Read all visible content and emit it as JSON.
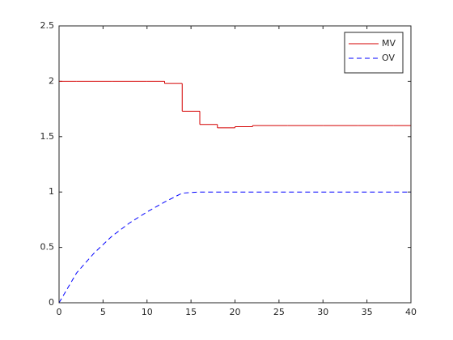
{
  "chart_data": {
    "type": "line",
    "x": [
      0,
      2,
      4,
      6,
      8,
      10,
      12,
      14,
      16,
      18,
      20,
      22,
      24,
      26,
      28,
      30,
      32,
      34,
      36,
      38,
      40
    ],
    "series": [
      {
        "name": "MV",
        "color": "#d40000",
        "dash": "solid",
        "drawstyle": "steps-post",
        "values": [
          2,
          2,
          2,
          2,
          2,
          2,
          1.98,
          1.73,
          1.61,
          1.58,
          1.59,
          1.6,
          1.6,
          1.6,
          1.6,
          1.6,
          1.6,
          1.6,
          1.6,
          1.6,
          1.6
        ]
      },
      {
        "name": "OV",
        "color": "#0000ff",
        "dash": "dashed",
        "drawstyle": "linear",
        "values": [
          0,
          0.27,
          0.45,
          0.6,
          0.72,
          0.82,
          0.91,
          0.99,
          1,
          1,
          1,
          1,
          1,
          1,
          1,
          1,
          1,
          1,
          1,
          1,
          1
        ]
      }
    ],
    "xlim": [
      0,
      40
    ],
    "xticks": [
      0,
      5,
      10,
      15,
      20,
      25,
      30,
      35,
      40
    ],
    "ylim": [
      0,
      2.5
    ],
    "yticks": [
      0,
      0.5,
      1,
      1.5,
      2,
      2.5
    ],
    "grid": false,
    "legend": "upper-right"
  }
}
